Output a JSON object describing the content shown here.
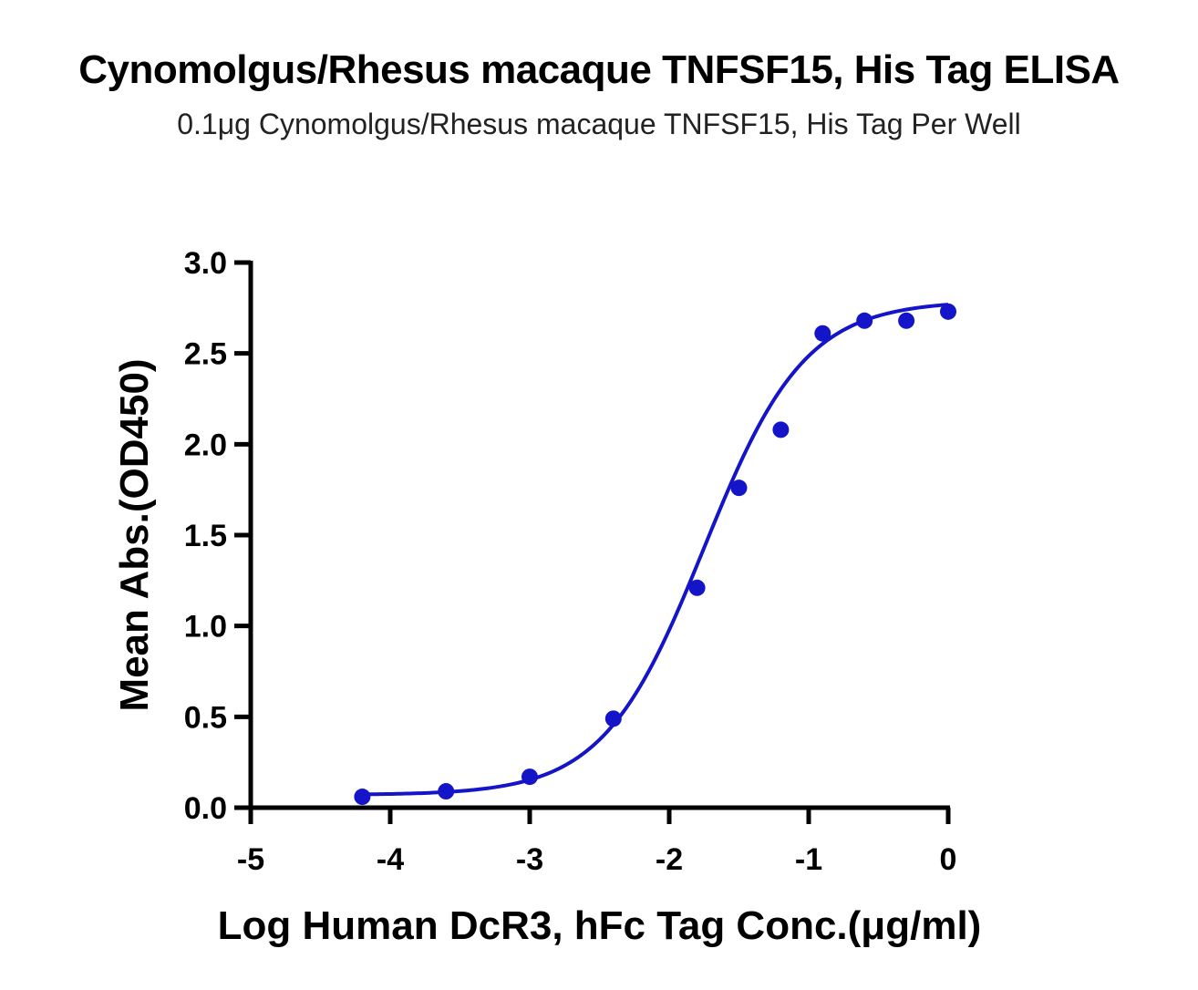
{
  "chart_data": {
    "type": "scatter",
    "title": "Cynomolgus/Rhesus macaque TNFSF15, His Tag ELISA",
    "subtitle": "0.1μg Cynomolgus/Rhesus macaque TNFSF15, His Tag Per Well",
    "xlabel": "Log Human DcR3, hFc Tag Conc.(μg/ml)",
    "ylabel": "Mean Abs.(OD450)",
    "xlim": [
      -5,
      0
    ],
    "ylim": [
      0,
      3.0
    ],
    "xticks": [
      -5,
      -4,
      -3,
      -2,
      -1,
      0
    ],
    "xtick_labels": [
      "-5",
      "-4",
      "-3",
      "-2",
      "-1",
      "0"
    ],
    "yticks": [
      0,
      0.5,
      1.0,
      1.5,
      2.0,
      2.5,
      3.0
    ],
    "ytick_labels": [
      "0.0",
      "0.5",
      "1.0",
      "1.5",
      "2.0",
      "2.5",
      "3.0"
    ],
    "grid": false,
    "color": "#1414c8",
    "series": [
      {
        "x": [
          -4.2,
          -3.6,
          -3.0,
          -2.4,
          -1.8,
          -1.5,
          -1.2,
          -0.9,
          -0.6,
          -0.3,
          0.0
        ],
        "y": [
          0.06,
          0.09,
          0.17,
          0.49,
          1.21,
          1.76,
          2.08,
          2.61,
          2.68,
          2.68,
          2.73
        ]
      }
    ],
    "fit_curve": {
      "model": "4PL",
      "bottom": 0.07,
      "top": 2.79,
      "log_ec50": -1.75,
      "hill": 1.2,
      "x_range": [
        -4.2,
        0.0
      ]
    }
  }
}
